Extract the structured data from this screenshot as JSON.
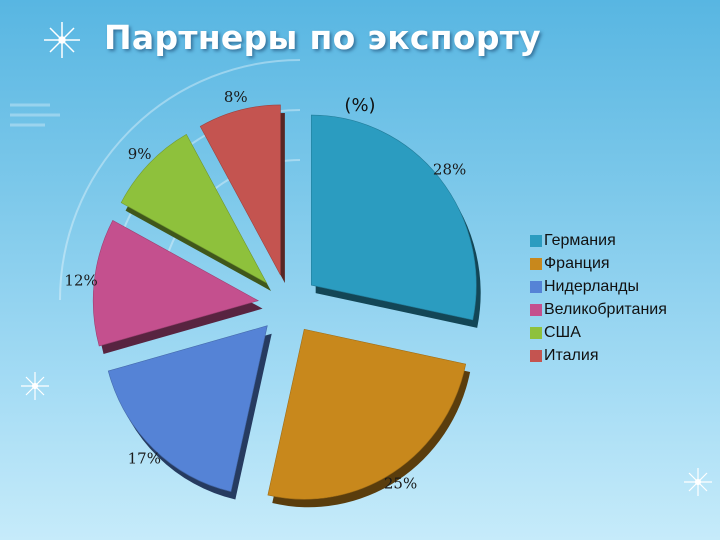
{
  "slide": {
    "title": "Партнеры по экспорту"
  },
  "chart_data": {
    "type": "pie",
    "title": "(%)",
    "series": [
      {
        "categories": [
          "Германия",
          "Франция",
          "Нидерланды",
          "Великобритания",
          "США",
          "Италия"
        ],
        "values": [
          28,
          25,
          17,
          12,
          9,
          8
        ],
        "labels": [
          "28%",
          "25%",
          "17%",
          "12%",
          "9%",
          "8%"
        ],
        "colors": [
          "#2b9cc0",
          "#c8881c",
          "#5583d6",
          "#c4508e",
          "#8ec13c",
          "#c45450"
        ]
      }
    ],
    "legend_position": "right",
    "exploded": true,
    "style": "3d"
  }
}
